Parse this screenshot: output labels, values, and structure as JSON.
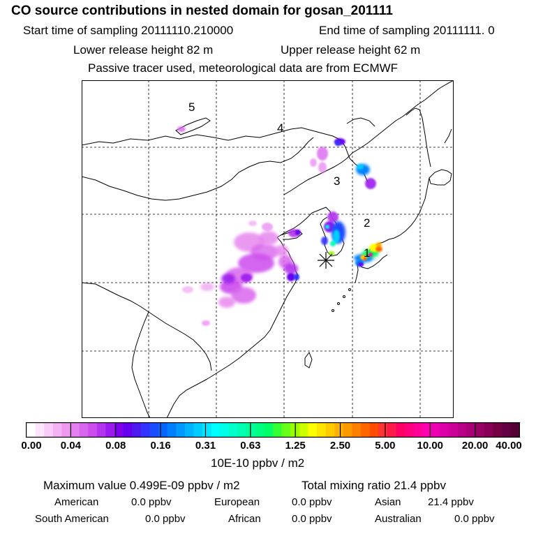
{
  "header": {
    "title": "CO  source contributions in nested domain for gosan_201111",
    "start_time": "Start time of sampling 20111110.210000",
    "end_time": "End time of sampling 20111111.     0",
    "lower_release": "Lower release height   82 m",
    "upper_release": "Upper release height   62 m",
    "tracer_note": "Passive tracer used, meteorological data are from ECMWF"
  },
  "map": {
    "region_labels": [
      "1",
      "2",
      "3",
      "4",
      "5"
    ],
    "receptor_marker": "asterisk"
  },
  "colorbar": {
    "tick_labels": [
      "0.00",
      "0.04",
      "0.08",
      "0.16",
      "0.31",
      "0.63",
      "1.25",
      "2.50",
      "5.00",
      "10.00",
      "20.00",
      "40.00"
    ],
    "colors": [
      "#ffffff",
      "#fde6fd",
      "#f9ccf9",
      "#f4b3f4",
      "#ee99ee",
      "#e680ee",
      "#d966ee",
      "#cc4cee",
      "#b333ee",
      "#9c1aee",
      "#8000ee",
      "#6600ee",
      "#4d1aee",
      "#3333ff",
      "#1a4cff",
      "#0066ff",
      "#0080ff",
      "#0099ff",
      "#00b3ff",
      "#00ccff",
      "#00e6ff",
      "#00ffff",
      "#00ffe6",
      "#00ffcc",
      "#00ffb3",
      "#00ff99",
      "#00ff80",
      "#00ff66",
      "#33ff33",
      "#66ff1a",
      "#99ff00",
      "#ccff00",
      "#ffff00",
      "#ffe600",
      "#ffcc00",
      "#ffb300",
      "#ff9900",
      "#ff8000",
      "#ff6600",
      "#ff4c00",
      "#ff3333",
      "#ff1a4c",
      "#ff0066",
      "#ff0080",
      "#ff0099",
      "#ff00b3",
      "#ee00b3",
      "#dd00aa",
      "#cc0099",
      "#bb0088",
      "#aa0077",
      "#990066",
      "#880055",
      "#770044",
      "#660044",
      "#550033"
    ],
    "unit": "10E-10 ppbv / m2"
  },
  "stats": {
    "max_value": "Maximum value  0.499E-09 ppbv / m2",
    "total_mixing": "Total mixing ratio       21.4 ppbv",
    "regions": [
      {
        "name": "American",
        "value": "0.0 ppbv"
      },
      {
        "name": "European",
        "value": "0.0 ppbv"
      },
      {
        "name": "Asian",
        "value": "21.4 ppbv"
      },
      {
        "name": "South American",
        "value": "0.0 ppbv"
      },
      {
        "name": "African",
        "value": "0.0 ppbv"
      },
      {
        "name": "Australian",
        "value": "0.0 ppbv"
      }
    ]
  }
}
